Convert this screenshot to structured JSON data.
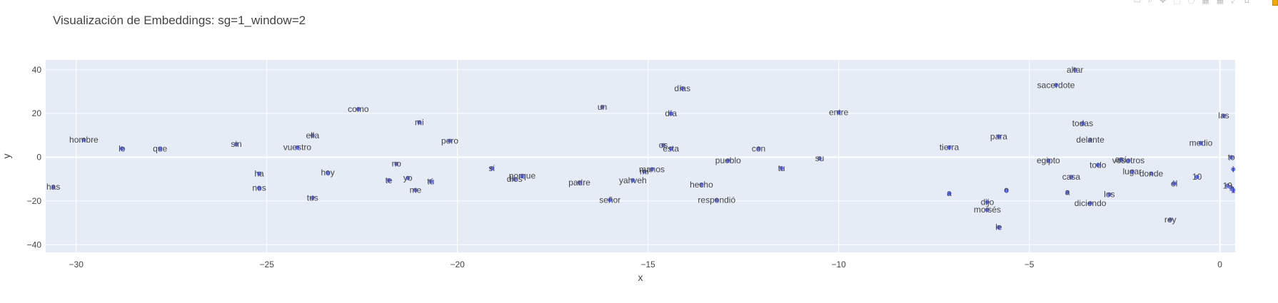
{
  "toolbar": {
    "icons": [
      "camera-icon",
      "zoom-icon",
      "pan-icon",
      "box-select-icon",
      "lasso-icon",
      "zoom-in-icon",
      "zoom-out-icon",
      "autoscale-icon",
      "reset-axes-icon"
    ]
  },
  "chart_data": {
    "type": "scatter",
    "title": "Visualización de Embeddings: sg=1_window=2",
    "xlabel": "x",
    "ylabel": "y",
    "xlim": [
      -30.8,
      0.4
    ],
    "ylim": [
      -43.5,
      44.5
    ],
    "xticks": [
      -30,
      -25,
      -20,
      -15,
      -10,
      -5,
      0
    ],
    "yticks": [
      -40,
      -20,
      0,
      20,
      40
    ],
    "grid": true,
    "marker_color": "#636efa",
    "plot_bg": "#e5ecf6",
    "points": [
      {
        "label": "has",
        "x": -30.6,
        "y": -13.5
      },
      {
        "label": "hombre",
        "x": -29.8,
        "y": 8
      },
      {
        "label": "lo",
        "x": -28.8,
        "y": 4
      },
      {
        "label": "que",
        "x": -27.8,
        "y": 4
      },
      {
        "label": "sin",
        "x": -25.8,
        "y": 6
      },
      {
        "label": "ha",
        "x": -25.2,
        "y": -7.5
      },
      {
        "label": "nos",
        "x": -25.2,
        "y": -14
      },
      {
        "label": "ella",
        "x": -23.8,
        "y": 10
      },
      {
        "label": "vuestro",
        "x": -24.2,
        "y": 4.5
      },
      {
        "label": "hoy",
        "x": -23.4,
        "y": -7
      },
      {
        "label": "tus",
        "x": -23.8,
        "y": -18.5
      },
      {
        "label": "como",
        "x": -22.6,
        "y": 22
      },
      {
        "label": "mi",
        "x": -21,
        "y": 16
      },
      {
        "label": "no",
        "x": -21.6,
        "y": -3
      },
      {
        "label": "te",
        "x": -21.8,
        "y": -10.5
      },
      {
        "label": "yo",
        "x": -21.3,
        "y": -9.5
      },
      {
        "label": "tú",
        "x": -20.7,
        "y": -11
      },
      {
        "label": "me",
        "x": -21.1,
        "y": -15
      },
      {
        "label": "pero",
        "x": -20.2,
        "y": 7.5
      },
      {
        "label": "si",
        "x": -19.1,
        "y": -5
      },
      {
        "label": "porque",
        "x": -18.3,
        "y": -8.5
      },
      {
        "label": "dios",
        "x": -18.5,
        "y": -10
      },
      {
        "label": "padre",
        "x": -16.8,
        "y": -11.5
      },
      {
        "label": "un",
        "x": -16.2,
        "y": 23
      },
      {
        "label": "señor",
        "x": -16,
        "y": -19.5
      },
      {
        "label": "yahveh",
        "x": -15.4,
        "y": -10.5
      },
      {
        "label": "mi",
        "x": -15.1,
        "y": -6.5
      },
      {
        "label": "manos",
        "x": -14.9,
        "y": -5.5
      },
      {
        "label": "días",
        "x": -14.1,
        "y": 31.5
      },
      {
        "label": "día",
        "x": -14.4,
        "y": 20
      },
      {
        "label": "os",
        "x": -14.6,
        "y": 5.5
      },
      {
        "label": "esta",
        "x": -14.4,
        "y": 4
      },
      {
        "label": "hecho",
        "x": -13.6,
        "y": -12.5
      },
      {
        "label": "respondió",
        "x": -13.2,
        "y": -19.5
      },
      {
        "label": "pueblo",
        "x": -12.9,
        "y": -1.5
      },
      {
        "label": "con",
        "x": -12.1,
        "y": 4
      },
      {
        "label": "tu",
        "x": -11.5,
        "y": -5
      },
      {
        "label": "su",
        "x": -10.5,
        "y": -0.5
      },
      {
        "label": "entre",
        "x": -10,
        "y": 20.5
      },
      {
        "label": "tierra",
        "x": -7.1,
        "y": 4.5
      },
      {
        "label": "para",
        "x": -5.8,
        "y": 9.5
      },
      {
        "label": "a",
        "x": -7.1,
        "y": -16.5
      },
      {
        "label": "dijo",
        "x": -6.1,
        "y": -20.5
      },
      {
        "label": "moisés",
        "x": -6.1,
        "y": -24
      },
      {
        "label": "o",
        "x": -5.6,
        "y": -15
      },
      {
        "label": "le",
        "x": -5.8,
        "y": -32
      },
      {
        "label": "altar",
        "x": -3.8,
        "y": 40
      },
      {
        "label": "sacerdote",
        "x": -4.3,
        "y": 33
      },
      {
        "label": "todas",
        "x": -3.6,
        "y": 15.5
      },
      {
        "label": "delante",
        "x": -3.4,
        "y": 8
      },
      {
        "label": "egipto",
        "x": -4.5,
        "y": -1.5
      },
      {
        "label": "todo",
        "x": -3.2,
        "y": -3.5
      },
      {
        "label": "casa",
        "x": -3.9,
        "y": -9
      },
      {
        "label": "así",
        "x": -2.6,
        "y": -1
      },
      {
        "label": "vosotros",
        "x": -2.4,
        "y": -1.5
      },
      {
        "label": "lugar",
        "x": -2.3,
        "y": -6.5
      },
      {
        "label": "a",
        "x": -4,
        "y": -16
      },
      {
        "label": "diciendo",
        "x": -3.4,
        "y": -21
      },
      {
        "label": "los",
        "x": -2.9,
        "y": -17
      },
      {
        "label": "donde",
        "x": -1.8,
        "y": -7.5
      },
      {
        "label": "él",
        "x": -1.2,
        "y": -12
      },
      {
        "label": "10",
        "x": -0.6,
        "y": -9
      },
      {
        "label": "rey",
        "x": -1.3,
        "y": -28.5
      },
      {
        "label": "medio",
        "x": -0.5,
        "y": 6.5
      },
      {
        "label": "las",
        "x": 0.1,
        "y": 19
      },
      {
        "label": "to",
        "x": 0.3,
        "y": 0
      },
      {
        "label": "i",
        "x": 0.35,
        "y": -5.5
      },
      {
        "label": "19",
        "x": 0.2,
        "y": -13
      },
      {
        "label": "1",
        "x": 0.3,
        "y": -14
      },
      {
        "label": "1",
        "x": 0.35,
        "y": -15
      }
    ]
  }
}
